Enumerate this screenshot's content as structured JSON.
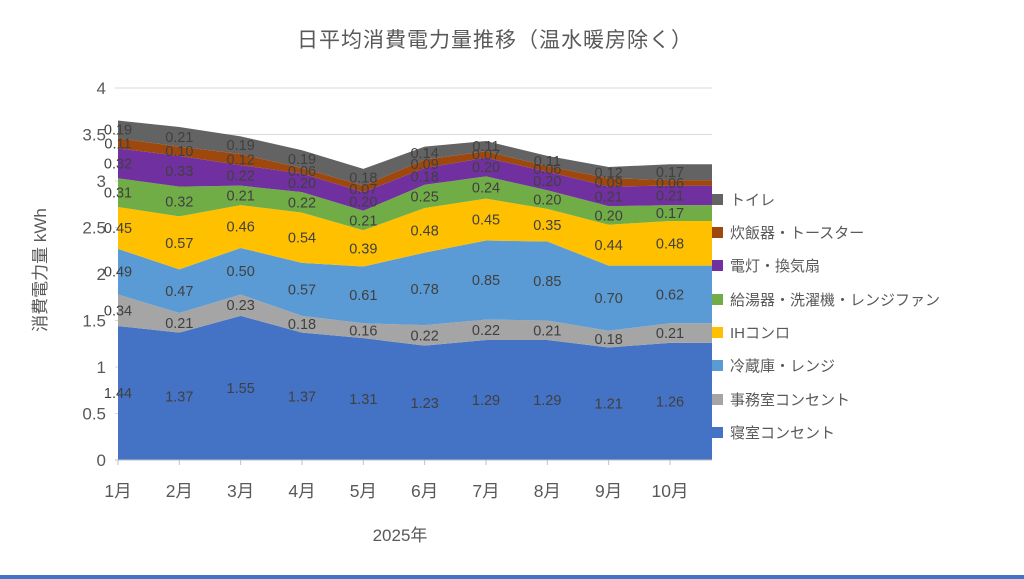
{
  "chart_data": {
    "type": "area",
    "stacked": true,
    "title": "日平均消費電力量推移（温水暖房除く）",
    "xlabel": "2025年",
    "ylabel": "消費電力量 kWh",
    "ylim": [
      0,
      4
    ],
    "ytick_step": 0.5,
    "yticks": [
      "0",
      "0.5",
      "1",
      "1.5",
      "2",
      "2.5",
      "3",
      "3.5",
      "4"
    ],
    "grid": true,
    "data_labels": true,
    "data_label_format": "0.00",
    "legend_position": "right",
    "categories": [
      "1月",
      "2月",
      "3月",
      "4月",
      "5月",
      "6月",
      "7月",
      "8月",
      "9月",
      "10月"
    ],
    "series": [
      {
        "name": "寝室コンセント",
        "color": "#4472C4",
        "values": [
          1.44,
          1.37,
          1.55,
          1.37,
          1.31,
          1.23,
          1.29,
          1.29,
          1.21,
          1.26
        ]
      },
      {
        "name": "事務室コンセント",
        "color": "#A5A5A5",
        "values": [
          0.34,
          0.21,
          0.23,
          0.18,
          0.16,
          0.22,
          0.22,
          0.21,
          0.18,
          0.21
        ]
      },
      {
        "name": "冷蔵庫・レンジ",
        "color": "#5B9BD5",
        "values": [
          0.49,
          0.47,
          0.5,
          0.57,
          0.61,
          0.78,
          0.85,
          0.85,
          0.7,
          0.62
        ]
      },
      {
        "name": "IHコンロ",
        "color": "#FFC000",
        "values": [
          0.45,
          0.57,
          0.46,
          0.54,
          0.39,
          0.48,
          0.45,
          0.35,
          0.44,
          0.48
        ]
      },
      {
        "name": "給湯器・洗濯機・レンジファン",
        "color": "#70AD47",
        "values": [
          0.31,
          0.32,
          0.21,
          0.22,
          0.21,
          0.25,
          0.24,
          0.2,
          0.2,
          0.17
        ]
      },
      {
        "name": "電灯・換気扇",
        "color": "#7030A0",
        "values": [
          0.32,
          0.33,
          0.22,
          0.2,
          0.2,
          0.18,
          0.2,
          0.2,
          0.21,
          0.21
        ]
      },
      {
        "name": "炊飯器・トースター",
        "color": "#9E480E",
        "values": [
          0.11,
          0.1,
          0.12,
          0.06,
          0.07,
          0.09,
          0.07,
          0.06,
          0.09,
          0.06
        ]
      },
      {
        "name": "トイレ",
        "color": "#636363",
        "values": [
          0.19,
          0.21,
          0.19,
          0.19,
          0.18,
          0.14,
          0.11,
          0.11,
          0.12,
          0.17
        ]
      }
    ],
    "legend_order_top_to_bottom": [
      "トイレ",
      "炊飯器・トースター",
      "電灯・換気扇",
      "給湯器・洗濯機・レンジファン",
      "IHコンロ",
      "冷蔵庫・レンジ",
      "事務室コンセント",
      "寝室コンセント"
    ]
  },
  "colors": {
    "title_text": "#595959",
    "axis_text": "#595959",
    "data_label_text": "#404040",
    "gridline": "#D9D9D9",
    "axis_line": "#BFBFBF",
    "bottom_bar": "#4472C4"
  }
}
